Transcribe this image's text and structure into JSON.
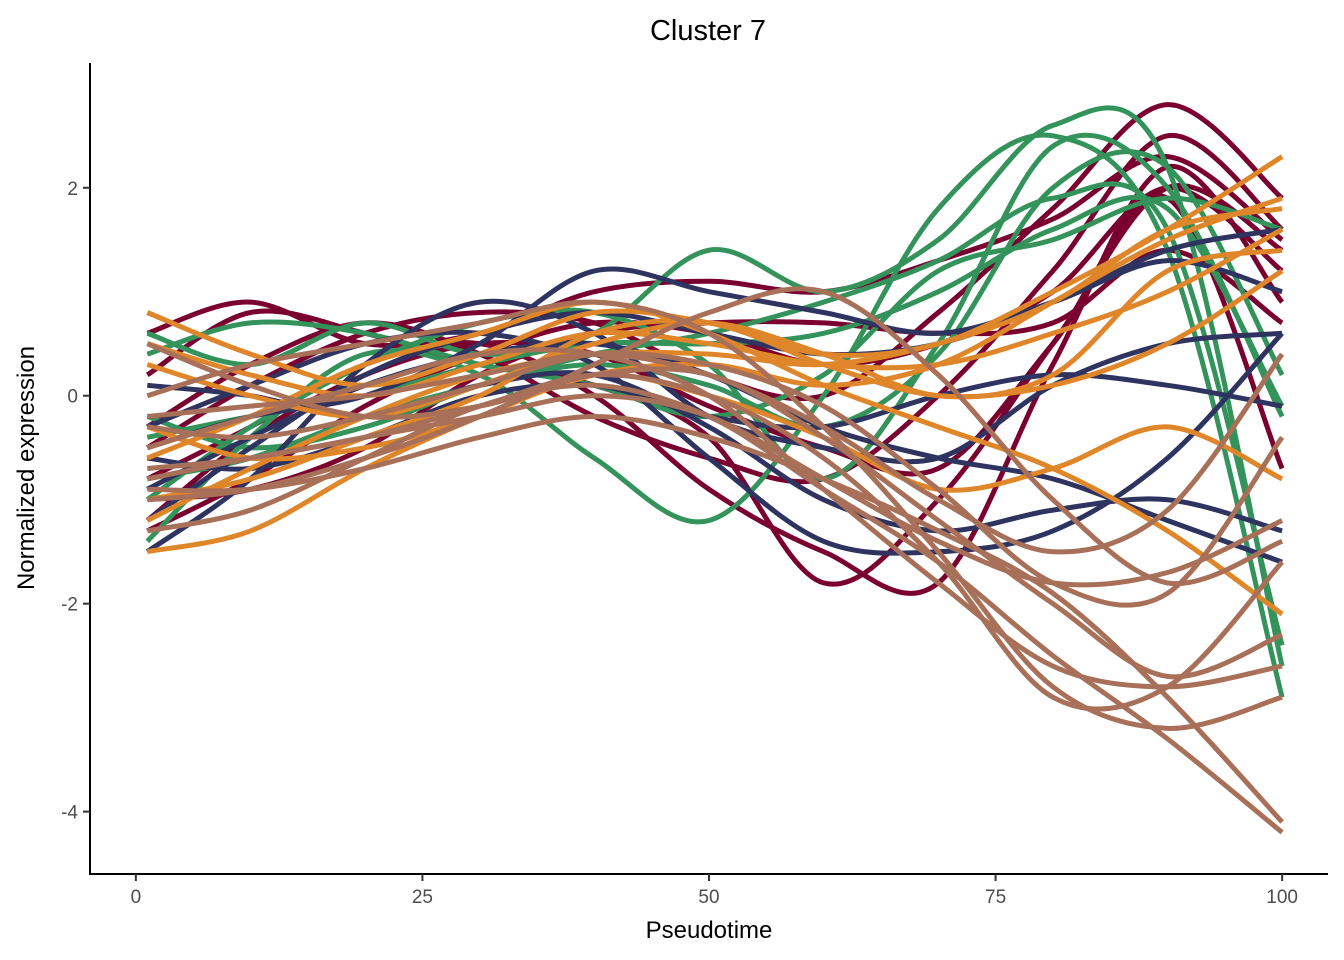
{
  "chart_data": {
    "type": "line",
    "title": "Cluster 7",
    "xlabel": "Pseudotime",
    "ylabel": "Normalized expression",
    "xlim": [
      -4,
      104
    ],
    "ylim": [
      -4.6,
      3.2
    ],
    "x_ticks": [
      0,
      25,
      50,
      75,
      100
    ],
    "x_tick_labels": [
      "0",
      "25",
      "50",
      "75",
      "100"
    ],
    "y_ticks": [
      -4,
      -2,
      0,
      2
    ],
    "y_tick_labels": [
      "-4",
      "-2",
      "0",
      "2"
    ],
    "grid": false,
    "legend": "none",
    "colors": {
      "crimson": "#7a0030",
      "green": "#33935a",
      "navy": "#2e3360",
      "orange": "#e0862a",
      "brown": "#a87058"
    },
    "x": [
      1,
      10,
      20,
      30,
      40,
      50,
      60,
      70,
      80,
      90,
      100
    ],
    "series": [
      {
        "color": "crimson",
        "values": [
          0.2,
          0.8,
          0.6,
          0.3,
          0.1,
          -0.4,
          -1.8,
          -1.0,
          0.5,
          2.0,
          1.4
        ]
      },
      {
        "color": "crimson",
        "values": [
          -0.5,
          0.1,
          0.6,
          0.8,
          0.7,
          0.2,
          0.0,
          0.8,
          1.8,
          2.8,
          1.9
        ]
      },
      {
        "color": "crimson",
        "values": [
          -1.2,
          -0.4,
          0.2,
          0.5,
          0.4,
          -0.1,
          -0.5,
          -0.7,
          0.5,
          1.9,
          -0.7
        ]
      },
      {
        "color": "crimson",
        "values": [
          0.6,
          0.9,
          0.5,
          0.6,
          1.0,
          1.1,
          1.0,
          1.3,
          1.7,
          2.3,
          1.5
        ]
      },
      {
        "color": "crimson",
        "values": [
          -0.8,
          -0.3,
          0.3,
          0.5,
          0.0,
          -0.9,
          -1.5,
          -1.8,
          0.3,
          2.2,
          0.9
        ]
      },
      {
        "color": "crimson",
        "values": [
          -1.3,
          -0.8,
          -0.1,
          0.4,
          0.7,
          0.6,
          0.3,
          0.5,
          1.0,
          2.0,
          1.2
        ]
      },
      {
        "color": "crimson",
        "values": [
          -0.3,
          0.3,
          0.7,
          0.4,
          -0.2,
          -0.6,
          -0.8,
          0.0,
          1.2,
          2.5,
          1.6
        ]
      },
      {
        "color": "crimson",
        "values": [
          -1.0,
          -0.9,
          -0.5,
          0.2,
          0.6,
          0.7,
          0.7,
          0.6,
          0.7,
          1.4,
          0.7
        ]
      },
      {
        "color": "green",
        "values": [
          0.6,
          0.3,
          0.7,
          0.4,
          0.6,
          1.4,
          1.0,
          1.5,
          2.6,
          2.2,
          -2.6
        ]
      },
      {
        "color": "green",
        "values": [
          -1.4,
          -0.4,
          0.4,
          0.2,
          -0.6,
          -1.2,
          0.0,
          1.8,
          2.5,
          1.4,
          -2.9
        ]
      },
      {
        "color": "green",
        "values": [
          -0.4,
          -0.2,
          0.0,
          0.3,
          0.5,
          0.5,
          0.6,
          1.0,
          1.6,
          1.8,
          -0.1
        ]
      },
      {
        "color": "green",
        "values": [
          -0.8,
          -0.6,
          -0.2,
          0.1,
          0.3,
          0.1,
          -0.3,
          0.4,
          2.0,
          2.2,
          0.2
        ]
      },
      {
        "color": "green",
        "values": [
          0.4,
          0.7,
          0.6,
          0.3,
          0.1,
          -0.2,
          0.2,
          1.2,
          1.5,
          1.9,
          1.6
        ]
      },
      {
        "color": "green",
        "values": [
          -0.2,
          -0.5,
          -0.3,
          0.1,
          0.4,
          0.6,
          0.9,
          1.3,
          1.9,
          1.6,
          -2.4
        ]
      },
      {
        "color": "green",
        "values": [
          -1.0,
          -0.3,
          0.3,
          0.7,
          0.8,
          0.3,
          -0.8,
          0.5,
          2.4,
          2.0,
          -0.2
        ]
      },
      {
        "color": "navy",
        "values": [
          -1.5,
          -0.8,
          0.3,
          0.9,
          0.6,
          -0.2,
          -0.5,
          -0.6,
          0.1,
          0.5,
          0.6
        ]
      },
      {
        "color": "navy",
        "values": [
          -0.5,
          -0.2,
          0.0,
          0.5,
          1.2,
          1.0,
          0.8,
          0.6,
          0.9,
          1.3,
          1.0
        ]
      },
      {
        "color": "navy",
        "values": [
          0.1,
          0.0,
          -0.2,
          0.1,
          0.2,
          -0.3,
          -1.0,
          -1.3,
          -1.1,
          -1.0,
          -1.3
        ]
      },
      {
        "color": "navy",
        "values": [
          -0.9,
          -0.4,
          0.1,
          0.4,
          0.5,
          0.2,
          -0.3,
          -0.6,
          -0.8,
          -1.2,
          -1.6
        ]
      },
      {
        "color": "navy",
        "values": [
          -0.6,
          -0.7,
          -0.4,
          0.0,
          0.1,
          -0.2,
          -0.3,
          0.0,
          0.2,
          0.1,
          -0.1
        ]
      },
      {
        "color": "navy",
        "values": [
          -1.2,
          -0.5,
          0.2,
          0.6,
          0.8,
          0.6,
          0.4,
          0.5,
          0.9,
          1.4,
          1.6
        ]
      },
      {
        "color": "navy",
        "values": [
          -0.3,
          0.1,
          0.5,
          0.6,
          0.3,
          -0.6,
          -1.4,
          -1.5,
          -1.3,
          -0.6,
          0.6
        ]
      },
      {
        "color": "orange",
        "values": [
          0.8,
          0.4,
          0.1,
          0.4,
          0.8,
          0.7,
          0.4,
          0.5,
          1.0,
          1.6,
          2.3
        ]
      },
      {
        "color": "orange",
        "values": [
          -1.5,
          -1.3,
          -0.7,
          -0.2,
          0.2,
          0.3,
          0.1,
          0.3,
          0.9,
          1.5,
          1.9
        ]
      },
      {
        "color": "orange",
        "values": [
          0.3,
          0.0,
          -0.2,
          0.1,
          0.5,
          0.7,
          0.4,
          0.0,
          0.2,
          1.2,
          1.4
        ]
      },
      {
        "color": "orange",
        "values": [
          -0.3,
          -0.6,
          -0.5,
          -0.2,
          0.2,
          0.0,
          -0.4,
          -0.9,
          -0.7,
          -0.3,
          -0.8
        ]
      },
      {
        "color": "orange",
        "values": [
          -1.0,
          -0.8,
          -0.4,
          0.0,
          0.6,
          0.7,
          0.3,
          0.0,
          0.1,
          0.5,
          1.2
        ]
      },
      {
        "color": "orange",
        "values": [
          -0.6,
          -0.2,
          0.3,
          0.6,
          0.9,
          0.6,
          0.1,
          -0.3,
          -0.7,
          -1.3,
          -2.1
        ]
      },
      {
        "color": "orange",
        "values": [
          -1.2,
          -0.7,
          -0.2,
          0.2,
          0.4,
          0.4,
          0.3,
          0.5,
          0.9,
          1.6,
          1.8
        ]
      },
      {
        "color": "orange",
        "values": [
          0.5,
          0.2,
          0.0,
          0.3,
          0.6,
          0.5,
          0.3,
          0.3,
          0.6,
          1.0,
          1.6
        ]
      },
      {
        "color": "brown",
        "values": [
          -0.9,
          -0.9,
          -0.7,
          -0.4,
          -0.2,
          -0.4,
          -0.8,
          -1.3,
          -1.9,
          -2.9,
          -4.1
        ]
      },
      {
        "color": "brown",
        "values": [
          -1.3,
          -1.1,
          -0.6,
          -0.1,
          0.1,
          -0.2,
          -0.9,
          -1.6,
          -2.5,
          -3.3,
          -4.2
        ]
      },
      {
        "color": "brown",
        "values": [
          -0.5,
          -0.2,
          0.1,
          0.4,
          0.4,
          0.0,
          -0.9,
          -1.8,
          -2.6,
          -2.8,
          -2.6
        ]
      },
      {
        "color": "brown",
        "values": [
          0.0,
          0.3,
          0.5,
          0.7,
          0.9,
          0.6,
          -0.3,
          -1.5,
          -2.8,
          -3.2,
          -2.9
        ]
      },
      {
        "color": "brown",
        "values": [
          -0.7,
          -0.6,
          -0.4,
          -0.2,
          0.0,
          -0.2,
          -0.8,
          -1.4,
          -1.8,
          -1.7,
          -1.2
        ]
      },
      {
        "color": "brown",
        "values": [
          -1.0,
          -0.9,
          -0.6,
          -0.2,
          0.3,
          0.8,
          1.0,
          0.2,
          -1.0,
          -1.8,
          -1.4
        ]
      },
      {
        "color": "brown",
        "values": [
          0.5,
          0.1,
          -0.2,
          -0.1,
          0.2,
          0.2,
          -0.4,
          -1.2,
          -2.0,
          -2.7,
          -2.3
        ]
      },
      {
        "color": "brown",
        "values": [
          -0.3,
          -0.4,
          -0.2,
          0.1,
          0.4,
          0.3,
          -0.1,
          -0.9,
          -1.8,
          -1.9,
          -0.4
        ]
      },
      {
        "color": "brown",
        "values": [
          -0.8,
          -0.6,
          -0.4,
          -0.1,
          0.2,
          0.0,
          -0.6,
          -1.6,
          -2.9,
          -2.8,
          -1.6
        ]
      },
      {
        "color": "brown",
        "values": [
          -0.2,
          -0.1,
          0.0,
          0.2,
          0.4,
          0.2,
          -0.3,
          -1.0,
          -1.5,
          -1.1,
          0.4
        ]
      }
    ]
  }
}
